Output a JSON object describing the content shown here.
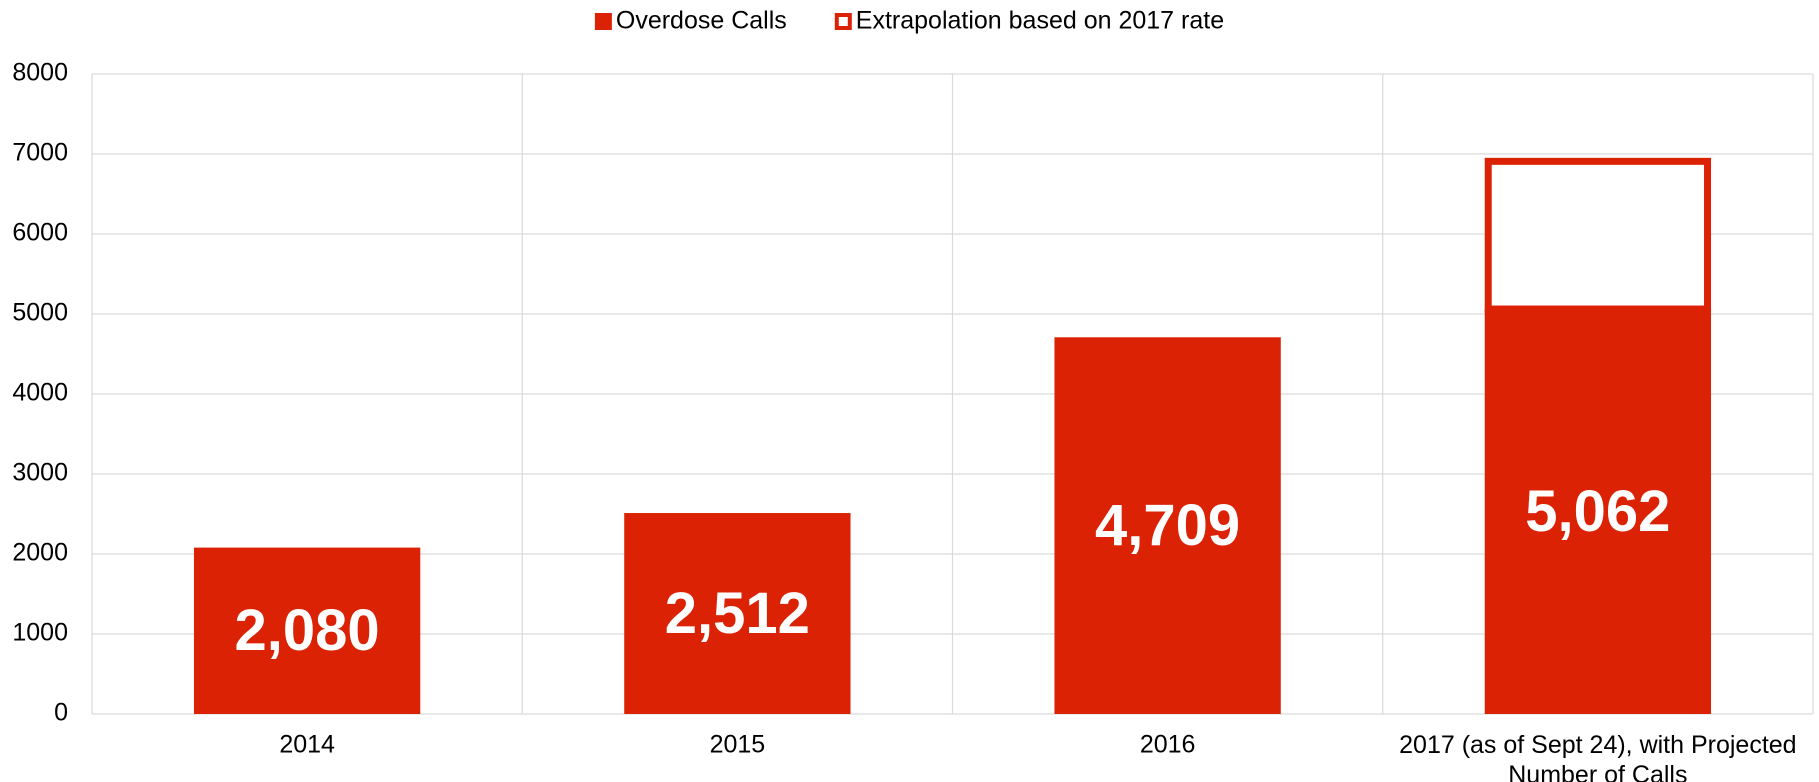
{
  "chart_data": {
    "type": "bar",
    "stacked": true,
    "categories": [
      "2014",
      "2015",
      "2016",
      "2017 (as of Sept 24), with Projected Number of Calls"
    ],
    "series": [
      {
        "name": "Overdose Calls",
        "color": "#dc2204",
        "values": [
          2080,
          2512,
          4709,
          5062
        ],
        "value_labels": [
          "2,080",
          "2,512",
          "4,709",
          "5,062"
        ]
      },
      {
        "name": "Extrapolation based on 2017 rate",
        "color": "#dc2204",
        "hollow": true,
        "values": [
          null,
          null,
          null,
          1890
        ]
      }
    ],
    "ylim": [
      0,
      8000
    ],
    "yticks": [
      0,
      1000,
      2000,
      3000,
      4000,
      5000,
      6000,
      7000,
      8000
    ],
    "grid": true,
    "legend": "top"
  }
}
